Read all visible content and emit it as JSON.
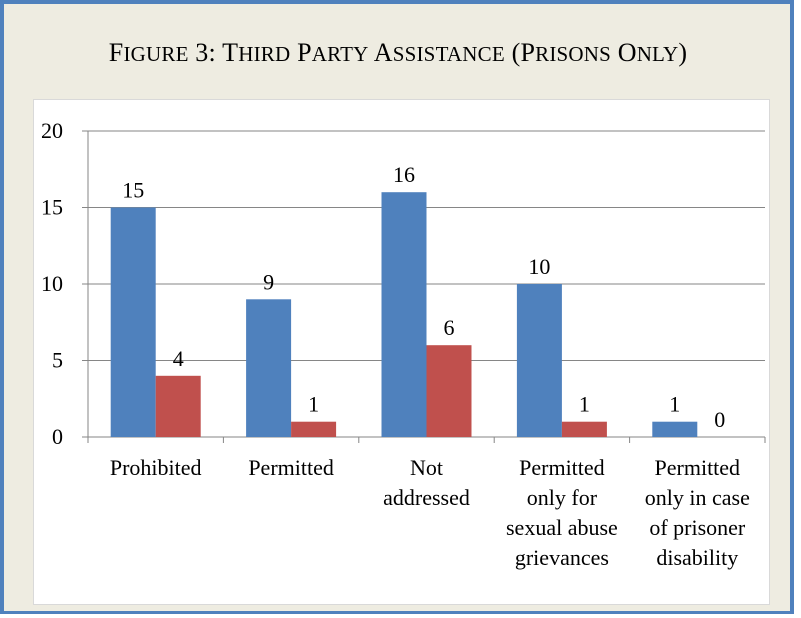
{
  "figure": {
    "title_parts": [
      {
        "text": "F",
        "small": false
      },
      {
        "text": "IGURE",
        "small": true
      },
      {
        "text": " 3: T",
        "small": false
      },
      {
        "text": "HIRD",
        "small": true
      },
      {
        "text": " P",
        "small": false
      },
      {
        "text": "ARTY",
        "small": true
      },
      {
        "text": " A",
        "small": false
      },
      {
        "text": "SSISTANCE",
        "small": true
      },
      {
        "text": " (P",
        "small": false
      },
      {
        "text": "RISONS",
        "small": true
      },
      {
        "text": " O",
        "small": false
      },
      {
        "text": "NLY",
        "small": true
      },
      {
        "text": ")",
        "small": false
      }
    ]
  },
  "chart_data": {
    "type": "bar",
    "title": "Figure 3: Third Party Assistance (Prisons Only)",
    "xlabel": "",
    "ylabel": "",
    "categories": [
      [
        "Prohibited"
      ],
      [
        "Permitted"
      ],
      [
        "Not",
        "addressed"
      ],
      [
        "Permitted",
        "only for",
        "sexual abuse",
        "grievances"
      ],
      [
        "Permitted",
        "only in case",
        "of prisoner",
        "disability"
      ]
    ],
    "series": [
      {
        "values": [
          15,
          9,
          16,
          10,
          1
        ],
        "color": "#4f81bd"
      },
      {
        "values": [
          4,
          1,
          6,
          1,
          0
        ],
        "color": "#c0504d"
      }
    ],
    "ylim": [
      0,
      20
    ],
    "yticks": [
      0,
      5,
      10,
      15,
      20
    ],
    "grid": true,
    "legend": "none",
    "data_labels": true
  }
}
